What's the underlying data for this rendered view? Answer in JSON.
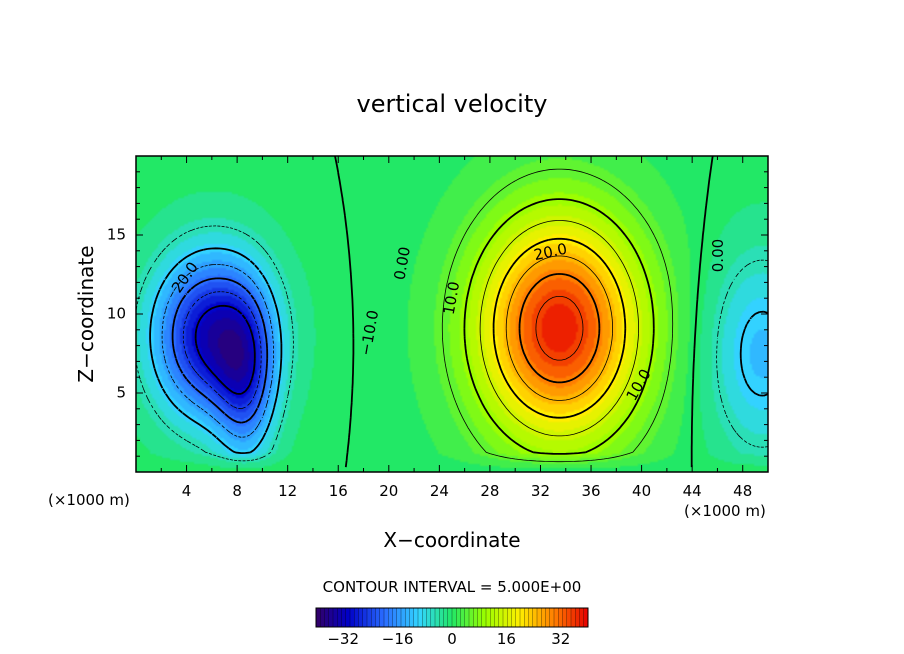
{
  "chart_data": {
    "type": "heatmap",
    "title": "vertical velocity",
    "xlabel": "X−coordinate",
    "ylabel": "Z−coordinate",
    "x_unit_left": "(×1000 m)",
    "x_unit_right": "(×1000 m)",
    "xlim": [
      0,
      50
    ],
    "ylim": [
      0,
      20
    ],
    "x_ticks": [
      4,
      8,
      12,
      16,
      20,
      24,
      28,
      32,
      36,
      40,
      44,
      48
    ],
    "x_tick_labels": [
      "4",
      "8",
      "12",
      "16",
      "20",
      "24",
      "28",
      "32",
      "36",
      "40",
      "44",
      "48"
    ],
    "y_ticks": [
      5,
      10,
      15
    ],
    "y_tick_labels": [
      "5",
      "10",
      "15"
    ],
    "contour_interval_text": "CONTOUR INTERVAL = 5.000E+00",
    "colorbar": {
      "range": [
        -40,
        40
      ],
      "ticks": [
        -32,
        -16,
        0,
        16,
        32
      ],
      "tick_labels": [
        "−32",
        "−16",
        "0",
        "16",
        "32"
      ]
    },
    "contour_labels": [
      {
        "text": "20.0",
        "x": 3.9,
        "z": 12.3,
        "angle": -55
      },
      {
        "text": "−10.0",
        "x": 18.5,
        "z": 8.8,
        "angle": -80
      },
      {
        "text": "0.00",
        "x": 21.1,
        "z": 13.2,
        "angle": -80
      },
      {
        "text": "10.0",
        "x": 25.0,
        "z": 11.0,
        "angle": -80
      },
      {
        "text": "20.0",
        "x": 32.8,
        "z": 13.9,
        "angle": -12
      },
      {
        "text": "10.0",
        "x": 39.8,
        "z": 5.5,
        "angle": -60
      },
      {
        "text": "0.00",
        "x": 46.1,
        "z": 13.7,
        "angle": -90
      }
    ],
    "features": [
      {
        "name": "downdraft-core",
        "x": 6.0,
        "z": 8.6,
        "amplitude": -32,
        "sx": 3.2,
        "sz": 3.6
      },
      {
        "name": "downdraft-lobe",
        "x": 8.7,
        "z": 5.6,
        "amplitude": -16,
        "sx": 1.6,
        "sz": 3.6
      },
      {
        "name": "updraft-core",
        "x": 33.5,
        "z": 9.1,
        "amplitude": 38,
        "sx": 4.6,
        "sz": 5.0
      },
      {
        "name": "right-edge-downdraft",
        "x": 49.5,
        "z": 7.5,
        "amplitude": -12,
        "sx": 3.0,
        "sz": 4.5
      }
    ],
    "grid": false,
    "legend": "colorbar-bottom"
  }
}
